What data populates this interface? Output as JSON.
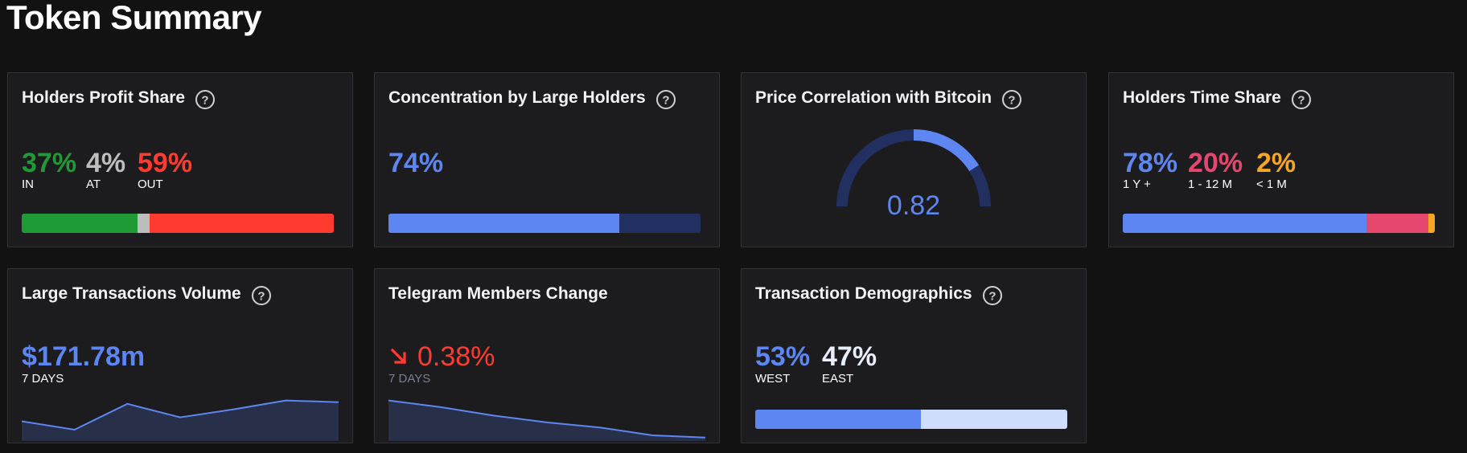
{
  "page_title": "Token Summary",
  "colors": {
    "background": "#121212",
    "card": "#1c1c1e",
    "blue": "#5d86f2",
    "dark_blue": "#223061",
    "green": "#1f9a36",
    "grey": "#bdbdbd",
    "red": "#ff3b2f",
    "pink": "#e5476e",
    "orange": "#f5a623",
    "light_blue": "#cfdcfb"
  },
  "profit_share": {
    "title": "Holders Profit Share",
    "in_value": "37%",
    "in_label": "IN",
    "at_value": "4%",
    "at_label": "AT",
    "out_value": "59%",
    "out_label": "OUT",
    "fractions": [
      0.37,
      0.04,
      0.59
    ]
  },
  "concentration": {
    "title": "Concentration by Large Holders",
    "value": "74%",
    "fraction": 0.74
  },
  "correlation": {
    "title": "Price Correlation with Bitcoin",
    "value": "0.82",
    "fraction": 0.82
  },
  "time_share": {
    "title": "Holders Time Share",
    "long_value": "78%",
    "long_label": "1 Y +",
    "mid_value": "20%",
    "mid_label": "1 - 12 M",
    "short_value": "2%",
    "short_label": "< 1 M",
    "fractions": [
      0.78,
      0.2,
      0.02
    ]
  },
  "large_tx": {
    "title": "Large Transactions Volume",
    "value": "$171.78m",
    "period": "7 DAYS",
    "spark": [
      35,
      20,
      66,
      42,
      56,
      72,
      69
    ]
  },
  "telegram": {
    "title": "Telegram Members Change",
    "value": "0.38%",
    "period": "7 DAYS",
    "spark": [
      72,
      60,
      45,
      33,
      24,
      10,
      6
    ]
  },
  "demographics": {
    "title": "Transaction Demographics",
    "west_value": "53%",
    "west_label": "WEST",
    "east_value": "47%",
    "east_label": "EAST",
    "fractions": [
      0.53,
      0.47
    ]
  }
}
